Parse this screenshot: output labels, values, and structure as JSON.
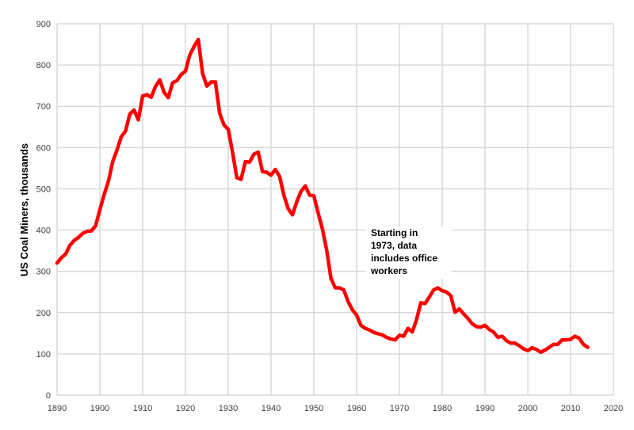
{
  "chart_data": {
    "type": "line",
    "title": "",
    "xlabel": "",
    "ylabel": "US Coal Miners, thousands",
    "xlim": [
      1890,
      2020
    ],
    "ylim": [
      0,
      900
    ],
    "xticks": [
      1890,
      1900,
      1910,
      1920,
      1930,
      1940,
      1950,
      1960,
      1970,
      1980,
      1990,
      2000,
      2010,
      2020
    ],
    "yticks": [
      0,
      100,
      200,
      300,
      400,
      500,
      600,
      700,
      800,
      900
    ],
    "grid": true,
    "line_color": "#ff0000",
    "annotation": "Starting in 1973, data includes office workers",
    "annotation_lines": [
      "Starting in",
      "1973, data",
      "includes office",
      "workers"
    ],
    "series": [
      {
        "name": "US Coal Miners",
        "start_year": 1890,
        "values": [
          320,
          333,
          342,
          363,
          375,
          382,
          392,
          397,
          398,
          410,
          449,
          486,
          518,
          566,
          594,
          626,
          640,
          681,
          691,
          667,
          725,
          728,
          722,
          748,
          764,
          734,
          721,
          757,
          762,
          777,
          785,
          824,
          845,
          862,
          780,
          749,
          759,
          759,
          683,
          655,
          644,
          589,
          527,
          523,
          566,
          565,
          584,
          589,
          542,
          540,
          533,
          547,
          530,
          485,
          452,
          437,
          468,
          494,
          507,
          485,
          483,
          442,
          403,
          352,
          283,
          260,
          260,
          255,
          227,
          207,
          194,
          169,
          162,
          158,
          152,
          149,
          146,
          140,
          136,
          134,
          145,
          143,
          162,
          153,
          183,
          224,
          222,
          238,
          255,
          260,
          253,
          250,
          241,
          201,
          209,
          197,
          186,
          173,
          166,
          165,
          169,
          159,
          153,
          140,
          143,
          132,
          126,
          126,
          120,
          112,
          108,
          115,
          111,
          104,
          109,
          116,
          123,
          123,
          134,
          134,
          135,
          143,
          138,
          123,
          116
        ]
      }
    ]
  }
}
